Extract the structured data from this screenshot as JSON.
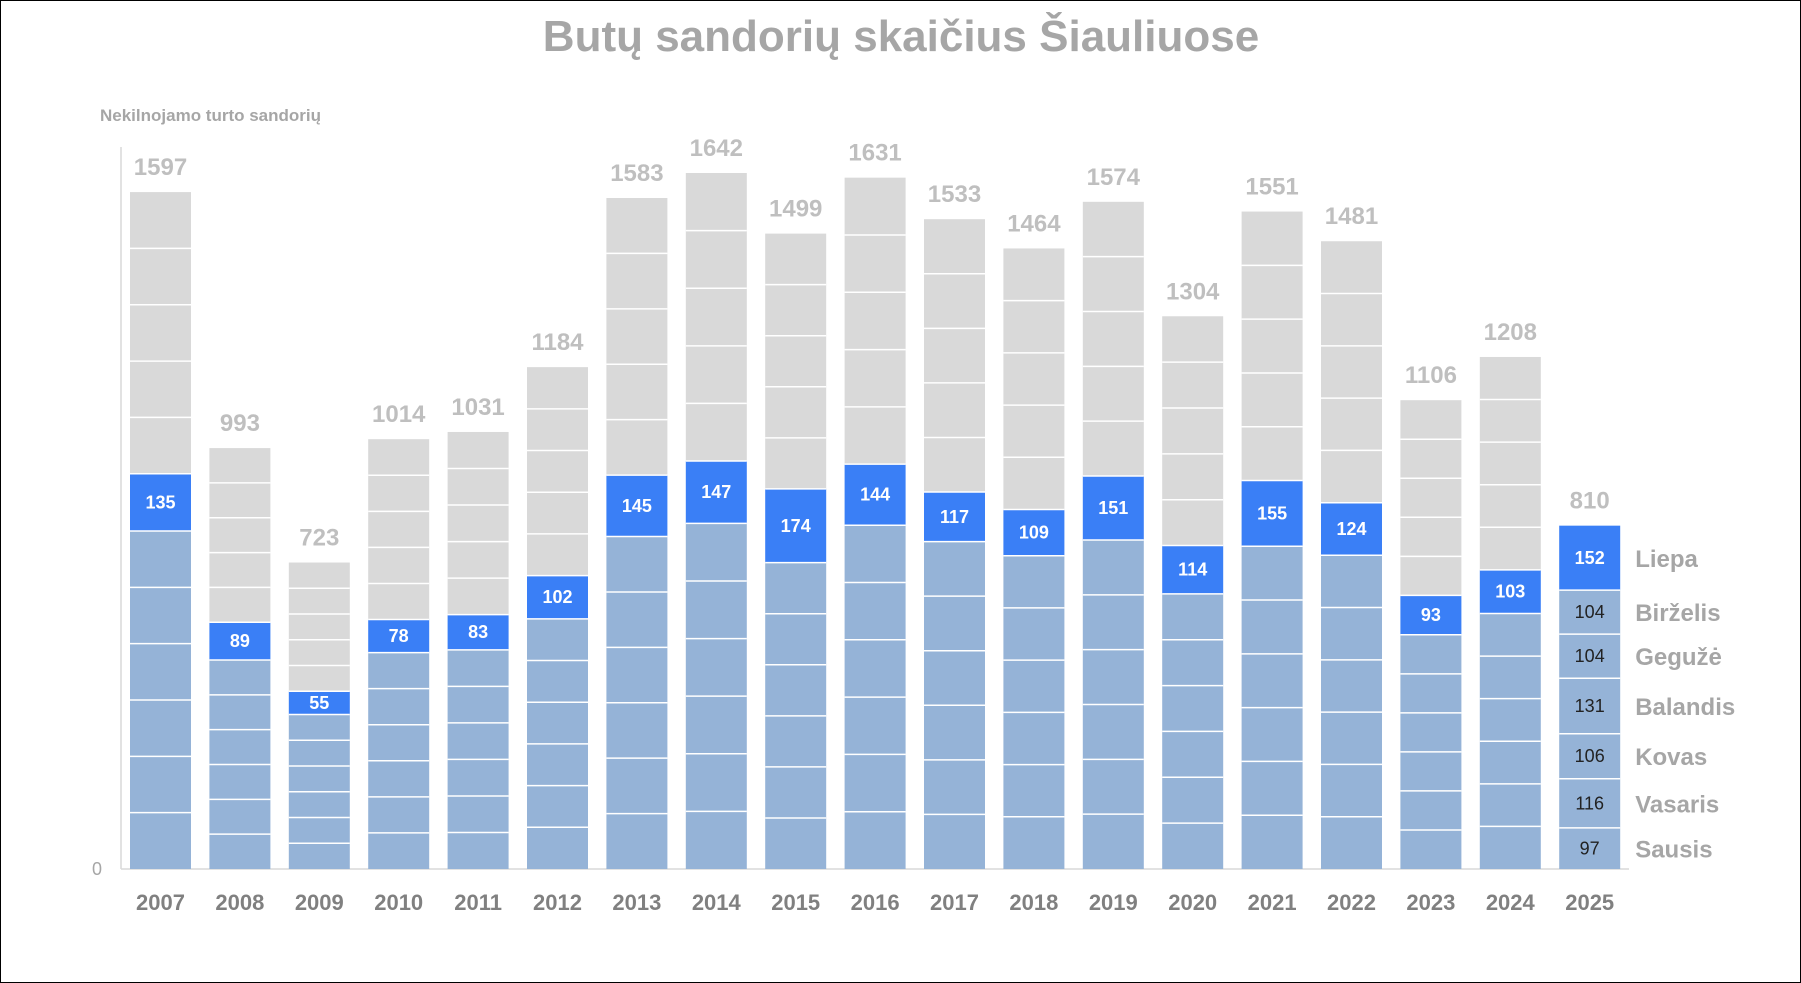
{
  "chart_data": {
    "type": "bar",
    "stacked": true,
    "title": "Butų sandorių skaičius Šiauliuose",
    "ylabel": "Nekilnojamo turto sandorių",
    "y_zero_label": "0",
    "ylim": [
      0,
      1700
    ],
    "categories": [
      "2007",
      "2008",
      "2009",
      "2010",
      "2011",
      "2012",
      "2013",
      "2014",
      "2015",
      "2016",
      "2017",
      "2018",
      "2019",
      "2020",
      "2021",
      "2022",
      "2023",
      "2024",
      "2025"
    ],
    "totals": [
      1597,
      993,
      723,
      1014,
      1031,
      1184,
      1583,
      1642,
      1499,
      1631,
      1533,
      1464,
      1574,
      1304,
      1551,
      1481,
      1106,
      1208,
      810
    ],
    "july_values": [
      135,
      89,
      55,
      78,
      83,
      102,
      145,
      147,
      174,
      144,
      117,
      109,
      151,
      114,
      155,
      124,
      93,
      103,
      152
    ],
    "month_names": [
      "Sausis",
      "Vasaris",
      "Kovas",
      "Balandis",
      "Gegužė",
      "Birželis",
      "Liepa"
    ],
    "monthly_2025": [
      97,
      116,
      106,
      131,
      104,
      104,
      152
    ],
    "colors": {
      "before_july": "#95b3d7",
      "july": "#3a7ff6",
      "after_july": "#d9d9d9",
      "divider": "#ffffff"
    }
  }
}
